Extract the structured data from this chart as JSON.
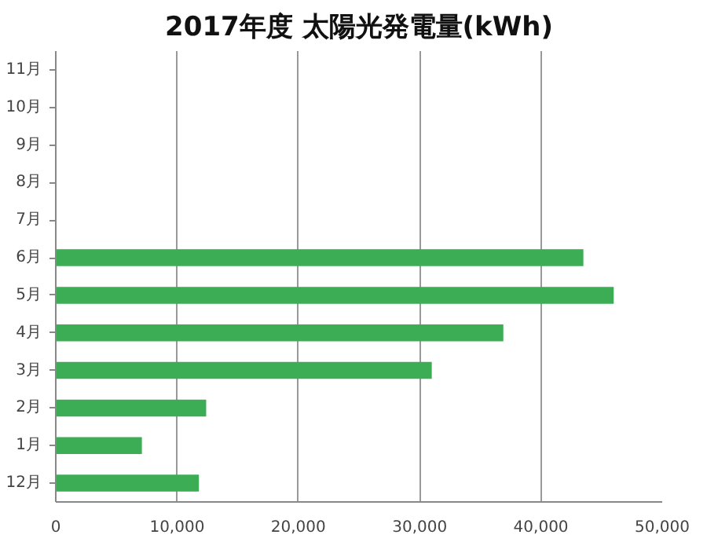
{
  "chart_data": {
    "type": "bar",
    "orientation": "horizontal",
    "title": "2017年度 太陽光発電量(kWh)",
    "categories": [
      "11月",
      "10月",
      "9月",
      "8月",
      "7月",
      "6月",
      "5月",
      "4月",
      "3月",
      "2月",
      "1月",
      "12月"
    ],
    "values": [
      null,
      null,
      null,
      null,
      null,
      43500,
      46000,
      36900,
      31000,
      12400,
      7100,
      11800
    ],
    "color": "#3cac55",
    "xlim": [
      0,
      50000
    ],
    "xticks": [
      {
        "value": 0,
        "label": "0"
      },
      {
        "value": 10000,
        "label": "10,000"
      },
      {
        "value": 20000,
        "label": "20,000"
      },
      {
        "value": 30000,
        "label": "30,000"
      },
      {
        "value": 40000,
        "label": "40,000"
      },
      {
        "value": 50000,
        "label": "50,000"
      }
    ],
    "grid": "x"
  }
}
